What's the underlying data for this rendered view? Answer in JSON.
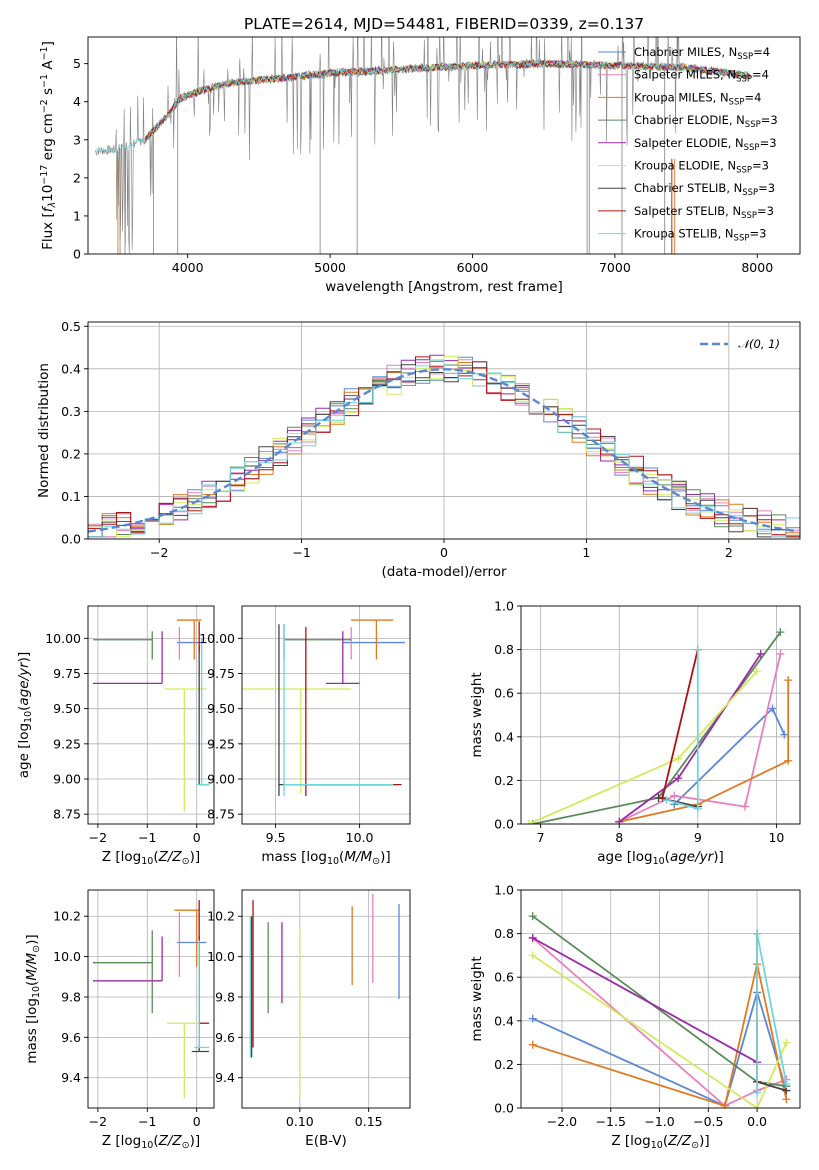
{
  "colors": {
    "chabrier_miles": "#5b87d6",
    "salpeter_miles": "#e87fc0",
    "kroupa_miles": "#e07a20",
    "chabrier_elodie": "#5a8a5a",
    "salpeter_elodie": "#9b2aa8",
    "kroupa_elodie": "#d4ea5c",
    "chabrier_stelib": "#444444",
    "salpeter_stelib": "#b01010",
    "kroupa_stelib": "#6fd6dc",
    "data": "#808080",
    "gaussian": "#5b87d6"
  },
  "chart_data": [
    {
      "id": "spectrum",
      "type": "line",
      "title": "PLATE=2614, MJD=54481, FIBERID=0339, z=0.137",
      "xlabel": "wavelength [Angstrom, rest frame]",
      "ylabel": "Flux [f_λ10^-17 erg cm^-2 s^-1 A^-1]",
      "xlim": [
        3300,
        8300
      ],
      "ylim": [
        0,
        5.7
      ],
      "xticks": [
        4000,
        5000,
        6000,
        7000,
        8000
      ],
      "yticks": [
        0,
        1,
        2,
        3,
        4,
        5
      ],
      "legend_position": "top-right",
      "continuum": [
        [
          3350,
          2.7
        ],
        [
          3500,
          2.75
        ],
        [
          3700,
          3.0
        ],
        [
          3850,
          3.6
        ],
        [
          3950,
          4.1
        ],
        [
          4100,
          4.3
        ],
        [
          4300,
          4.5
        ],
        [
          4600,
          4.6
        ],
        [
          5000,
          4.75
        ],
        [
          5500,
          4.85
        ],
        [
          6000,
          4.95
        ],
        [
          6500,
          5.0
        ],
        [
          7000,
          4.95
        ],
        [
          7500,
          4.9
        ],
        [
          7900,
          4.7
        ]
      ],
      "legend": [
        {
          "key": "chabrier_miles",
          "label": "Chabrier MILES, N",
          "sub": "SSP",
          "tail": "=4"
        },
        {
          "key": "salpeter_miles",
          "label": "Salpeter MILES, N",
          "sub": "SSP",
          "tail": "=4"
        },
        {
          "key": "kroupa_miles",
          "label": "Kroupa MILES, N",
          "sub": "SSP",
          "tail": "=4"
        },
        {
          "key": "chabrier_elodie",
          "label": "Chabrier ELODIE, N",
          "sub": "SSP",
          "tail": "=3"
        },
        {
          "key": "salpeter_elodie",
          "label": "Salpeter ELODIE, N",
          "sub": "SSP",
          "tail": "=3"
        },
        {
          "key": "kroupa_elodie",
          "label": "Kroupa ELODIE, N",
          "sub": "SSP",
          "tail": "=3"
        },
        {
          "key": "chabrier_stelib",
          "label": "Chabrier STELIB, N",
          "sub": "SSP",
          "tail": "=3"
        },
        {
          "key": "salpeter_stelib",
          "label": "Salpeter STELIB, N",
          "sub": "SSP",
          "tail": "=3"
        },
        {
          "key": "kroupa_stelib",
          "label": "Kroupa STELIB, N",
          "sub": "SSP",
          "tail": "=3"
        }
      ]
    },
    {
      "id": "residuals",
      "type": "line",
      "xlabel": "(data-model)/error",
      "ylabel": "Normed distribution",
      "xlim": [
        -2.5,
        2.5
      ],
      "ylim": [
        0,
        0.51
      ],
      "xticks": [
        -2,
        -1,
        0,
        1,
        2
      ],
      "yticks": [
        0.0,
        0.1,
        0.2,
        0.3,
        0.4,
        0.5
      ],
      "legend_label": "𝒩(0, 1)",
      "legend_position": "top-right",
      "bin_width": 0.1
    },
    {
      "id": "age_vs_Z",
      "type": "scatter",
      "xlabel": "Z [log10(Z/Z☉)]",
      "ylabel": "age  [log10(age/yr)]",
      "xlim": [
        -2.2,
        0.35
      ],
      "ylim": [
        8.68,
        10.23
      ],
      "xticks": [
        -2,
        -1,
        0
      ],
      "yticks": [
        8.75,
        9.0,
        9.25,
        9.5,
        9.75,
        10.0
      ],
      "points": [
        {
          "key": "chabrier_miles",
          "x": 0.0,
          "y": 9.97,
          "x0": -0.4,
          "x1": 0.2,
          "y0": 9.97,
          "y1": 9.97
        },
        {
          "key": "salpeter_miles",
          "x": -0.35,
          "y": 9.97,
          "x0": -0.35,
          "x1": -0.35,
          "y0": 9.85,
          "y1": 10.08
        },
        {
          "key": "kroupa_miles",
          "x": -0.05,
          "y": 10.13,
          "x0": -0.4,
          "x1": 0.1,
          "y0": 9.85,
          "y1": 10.13
        },
        {
          "key": "chabrier_elodie",
          "x": -0.9,
          "y": 9.99,
          "x0": -2.1,
          "x1": -0.9,
          "y0": 9.85,
          "y1": 10.05
        },
        {
          "key": "salpeter_elodie",
          "x": -0.7,
          "y": 9.68,
          "x0": -2.1,
          "x1": -0.7,
          "y0": 9.68,
          "y1": 10.05
        },
        {
          "key": "kroupa_elodie",
          "x": -0.25,
          "y": 9.64,
          "x0": -0.65,
          "x1": 0.2,
          "y0": 8.77,
          "y1": 9.64
        },
        {
          "key": "chabrier_stelib",
          "x": 0.05,
          "y": 8.96,
          "x0": 0.05,
          "x1": 0.25,
          "y0": 8.96,
          "y1": 9.95
        },
        {
          "key": "salpeter_stelib",
          "x": 0.05,
          "y": 10.1,
          "x0": 0.05,
          "x1": 0.05,
          "y0": 9.9,
          "y1": 10.12
        },
        {
          "key": "kroupa_stelib",
          "x": 0.1,
          "y": 8.96,
          "x0": 0.0,
          "x1": 0.25,
          "y0": 8.96,
          "y1": 10.0
        }
      ]
    },
    {
      "id": "age_vs_mass",
      "type": "scatter",
      "xlabel": "mass [log10(M/M☉)]",
      "ylabel": "",
      "xlim": [
        9.3,
        10.3
      ],
      "ylim": [
        8.68,
        10.23
      ],
      "xticks": [
        9.5,
        10.0
      ],
      "yticks": [
        8.75,
        9.0,
        9.25,
        9.5,
        9.75,
        10.0
      ],
      "points": [
        {
          "key": "chabrier_miles",
          "x": 10.08,
          "y": 9.97,
          "x0": 9.9,
          "x1": 10.27,
          "y0": 9.97,
          "y1": 9.97
        },
        {
          "key": "salpeter_miles",
          "x": 9.95,
          "y": 9.97,
          "x0": 9.95,
          "x1": 9.95,
          "y0": 9.85,
          "y1": 10.08
        },
        {
          "key": "kroupa_miles",
          "x": 10.1,
          "y": 10.13,
          "x0": 9.95,
          "x1": 10.2,
          "y0": 9.85,
          "y1": 10.13
        },
        {
          "key": "chabrier_elodie",
          "x": 9.55,
          "y": 9.99,
          "x0": 9.55,
          "x1": 9.95,
          "y0": 9.85,
          "y1": 10.1
        },
        {
          "key": "salpeter_elodie",
          "x": 9.9,
          "y": 9.68,
          "x0": 9.8,
          "x1": 10.0,
          "y0": 9.68,
          "y1": 10.05
        },
        {
          "key": "kroupa_elodie",
          "x": 9.65,
          "y": 9.64,
          "x0": 9.3,
          "x1": 9.95,
          "y0": 8.9,
          "y1": 9.64
        },
        {
          "key": "chabrier_stelib",
          "x": 9.52,
          "y": 8.96,
          "x0": 9.52,
          "x1": 10.2,
          "y0": 8.88,
          "y1": 10.1
        },
        {
          "key": "salpeter_stelib",
          "x": 9.68,
          "y": 8.96,
          "x0": 9.68,
          "x1": 10.25,
          "y0": 8.88,
          "y1": 10.08
        },
        {
          "key": "kroupa_stelib",
          "x": 9.55,
          "y": 8.96,
          "x0": 9.55,
          "x1": 10.2,
          "y0": 8.88,
          "y1": 10.1
        }
      ]
    },
    {
      "id": "mass_weight_vs_age",
      "type": "line",
      "xlabel": "age  [log10(age/yr)]",
      "ylabel": "mass weight",
      "xlim": [
        6.75,
        10.3
      ],
      "ylim": [
        0,
        1.0
      ],
      "xticks": [
        7,
        8,
        9,
        10
      ],
      "yticks": [
        0.0,
        0.2,
        0.4,
        0.6,
        0.8,
        1.0
      ],
      "series": [
        {
          "key": "chabrier_miles",
          "x": [
            8.7,
            9.95,
            10.1
          ],
          "y": [
            0.09,
            0.53,
            0.41
          ]
        },
        {
          "key": "salpeter_miles",
          "x": [
            8.0,
            8.7,
            9.6,
            10.05
          ],
          "y": [
            0.01,
            0.13,
            0.08,
            0.78
          ]
        },
        {
          "key": "kroupa_miles",
          "x": [
            8.0,
            9.0,
            10.15,
            10.15
          ],
          "y": [
            0.01,
            0.09,
            0.29,
            0.66
          ]
        },
        {
          "key": "chabrier_elodie",
          "x": [
            6.9,
            8.5,
            10.05
          ],
          "y": [
            0.0,
            0.12,
            0.88
          ]
        },
        {
          "key": "salpeter_elodie",
          "x": [
            8.0,
            8.75,
            9.8
          ],
          "y": [
            0.01,
            0.21,
            0.78
          ]
        },
        {
          "key": "kroupa_elodie",
          "x": [
            6.85,
            8.75,
            9.75
          ],
          "y": [
            0.0,
            0.3,
            0.7
          ]
        },
        {
          "key": "chabrier_stelib",
          "x": [
            8.5,
            9.0
          ],
          "y": [
            0.12,
            0.08
          ]
        },
        {
          "key": "salpeter_stelib",
          "x": [
            8.55,
            9.0
          ],
          "y": [
            0.12,
            0.8
          ]
        },
        {
          "key": "kroupa_stelib",
          "x": [
            8.6,
            9.0,
            9.0
          ],
          "y": [
            0.11,
            0.07,
            0.8
          ]
        }
      ]
    },
    {
      "id": "mass_vs_Z",
      "type": "scatter",
      "xlabel": "Z [log10(Z/Z☉)]",
      "ylabel": "mass [log10(M/M☉)]",
      "xlim": [
        -2.2,
        0.35
      ],
      "ylim": [
        9.25,
        10.33
      ],
      "xticks": [
        -2,
        -1,
        0
      ],
      "yticks": [
        9.4,
        9.6,
        9.8,
        10.0,
        10.2
      ],
      "points": [
        {
          "key": "chabrier_miles",
          "x": -0.05,
          "y": 10.07,
          "x0": -0.4,
          "x1": 0.2,
          "y0": 10.07,
          "y1": 10.07
        },
        {
          "key": "salpeter_miles",
          "x": -0.35,
          "y": 10.07,
          "x0": -0.35,
          "x1": -0.35,
          "y0": 9.9,
          "y1": 10.22
        },
        {
          "key": "kroupa_miles",
          "x": 0.0,
          "y": 10.23,
          "x0": -0.45,
          "x1": 0.05,
          "y0": 9.95,
          "y1": 10.23
        },
        {
          "key": "chabrier_elodie",
          "x": -0.9,
          "y": 9.97,
          "x0": -2.1,
          "x1": -0.9,
          "y0": 9.72,
          "y1": 10.13
        },
        {
          "key": "salpeter_elodie",
          "x": -0.7,
          "y": 9.88,
          "x0": -2.1,
          "x1": -0.7,
          "y0": 9.88,
          "y1": 10.1
        },
        {
          "key": "kroupa_elodie",
          "x": -0.25,
          "y": 9.67,
          "x0": -0.6,
          "x1": 0.05,
          "y0": 9.3,
          "y1": 9.67
        },
        {
          "key": "chabrier_stelib",
          "x": 0.05,
          "y": 9.53,
          "x0": -0.1,
          "x1": 0.25,
          "y0": 9.53,
          "y1": 10.1
        },
        {
          "key": "salpeter_stelib",
          "x": 0.05,
          "y": 9.67,
          "x0": 0.05,
          "x1": 0.25,
          "y0": 9.67,
          "y1": 10.28
        },
        {
          "key": "kroupa_stelib",
          "x": 0.05,
          "y": 9.55,
          "x0": -0.05,
          "x1": 0.25,
          "y0": 9.55,
          "y1": 10.08
        }
      ]
    },
    {
      "id": "mass_vs_ebv",
      "type": "scatter",
      "xlabel": "E(B-V)",
      "ylabel": "",
      "xlim": [
        0.058,
        0.18
      ],
      "ylim": [
        9.25,
        10.33
      ],
      "xticks": [
        0.1,
        0.15
      ],
      "yticks": [
        9.4,
        9.6,
        9.8,
        10.0,
        10.2
      ],
      "points": [
        {
          "key": "chabrier_miles",
          "x": 0.172,
          "y": 10.05,
          "y0": 9.79,
          "y1": 10.26
        },
        {
          "key": "salpeter_miles",
          "x": 0.153,
          "y": 10.1,
          "y0": 9.87,
          "y1": 10.31
        },
        {
          "key": "kroupa_miles",
          "x": 0.138,
          "y": 10.1,
          "y0": 9.86,
          "y1": 10.25
        },
        {
          "key": "chabrier_elodie",
          "x": 0.077,
          "y": 9.95,
          "y0": 9.72,
          "y1": 10.17
        },
        {
          "key": "salpeter_elodie",
          "x": 0.087,
          "y": 9.98,
          "y0": 9.77,
          "y1": 10.17
        },
        {
          "key": "kroupa_elodie",
          "x": 0.1,
          "y": 9.7,
          "y0": 9.3,
          "y1": 10.15
        },
        {
          "key": "chabrier_stelib",
          "x": 0.065,
          "y": 9.8,
          "y0": 9.5,
          "y1": 10.2
        },
        {
          "key": "salpeter_stelib",
          "x": 0.066,
          "y": 9.9,
          "y0": 9.55,
          "y1": 10.28
        },
        {
          "key": "kroupa_stelib",
          "x": 0.064,
          "y": 9.8,
          "y0": 9.5,
          "y1": 10.2
        }
      ]
    },
    {
      "id": "mass_weight_vs_Z",
      "type": "line",
      "xlabel": "Z [log10(Z/Z☉)]",
      "ylabel": "mass weight",
      "xlim": [
        -2.42,
        0.44
      ],
      "ylim": [
        0,
        1.0
      ],
      "xticks": [
        -2.0,
        -1.5,
        -1.0,
        -0.5,
        0.0
      ],
      "yticks": [
        0.0,
        0.2,
        0.4,
        0.6,
        0.8,
        1.0
      ],
      "series": [
        {
          "key": "chabrier_miles",
          "x": [
            -2.3,
            -0.33,
            0.0,
            0.3
          ],
          "y": [
            0.41,
            0.01,
            0.53,
            0.08
          ]
        },
        {
          "key": "salpeter_miles",
          "x": [
            -2.3,
            -0.33,
            0.0,
            0.3
          ],
          "y": [
            0.78,
            0.01,
            0.08,
            0.13
          ]
        },
        {
          "key": "kroupa_miles",
          "x": [
            -2.3,
            -0.33,
            0.0,
            0.3
          ],
          "y": [
            0.29,
            0.01,
            0.66,
            0.04
          ]
        },
        {
          "key": "chabrier_elodie",
          "x": [
            -2.3,
            0.0,
            0.3
          ],
          "y": [
            0.88,
            0.12,
            0.1
          ]
        },
        {
          "key": "salpeter_elodie",
          "x": [
            -2.3,
            0.0
          ],
          "y": [
            0.78,
            0.21
          ]
        },
        {
          "key": "kroupa_elodie",
          "x": [
            -2.3,
            0.0,
            0.3
          ],
          "y": [
            0.7,
            0.0,
            0.3
          ]
        },
        {
          "key": "chabrier_stelib",
          "x": [
            0.0,
            0.3
          ],
          "y": [
            0.12,
            0.08
          ]
        },
        {
          "key": "salpeter_stelib",
          "x": [
            0.0,
            0.0
          ],
          "y": [
            0.12,
            0.8
          ]
        },
        {
          "key": "kroupa_stelib",
          "x": [
            0.0,
            0.0,
            0.3
          ],
          "y": [
            0.07,
            0.8,
            0.11
          ]
        }
      ]
    }
  ]
}
